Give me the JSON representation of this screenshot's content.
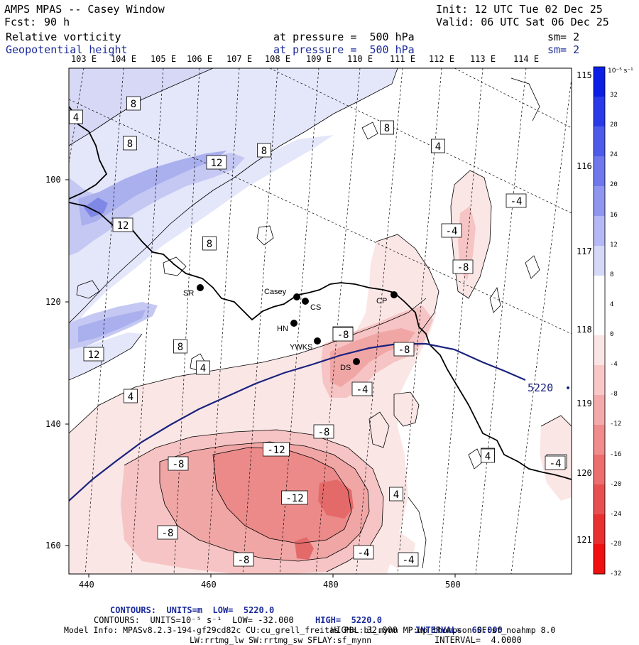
{
  "header": {
    "title": "AMPS MPAS -- Casey Window",
    "init": "Init: 12 UTC Tue 02 Dec 25",
    "fcst_label": "Fcst:",
    "fcst_value": "90 h",
    "valid": "Valid: 06 UTC Sat 06 Dec 25",
    "field1": "Relative vorticity",
    "field1_level": "at pressure =  500 hPa",
    "field1_sm": "sm= 2",
    "field2": "Geopotential height",
    "field2_level": "at pressure =  500 hPa",
    "field2_sm": "sm= 2"
  },
  "map": {
    "top_lon_labels": [
      "103 E",
      "104 E",
      "105 E",
      "106 E",
      "107 E",
      "108 E",
      "109 E",
      "110 E",
      "111 E",
      "112 E",
      "113 E",
      "114 E"
    ],
    "right_lon_labels": [
      "115 E",
      "116 E",
      "117 E",
      "118 E",
      "119 E",
      "120 E",
      "121 E"
    ],
    "x_ticks": [
      "440",
      "460",
      "480",
      "500"
    ],
    "y_ticks": [
      "100",
      "120",
      "140",
      "160"
    ],
    "stations": [
      {
        "name": "SR"
      },
      {
        "name": "Casey"
      },
      {
        "name": "CS"
      },
      {
        "name": "HN"
      },
      {
        "name": "YWKS"
      },
      {
        "name": "DS"
      },
      {
        "name": "CP"
      }
    ],
    "contour_labels": [
      "4",
      "8",
      "8",
      "12",
      "8",
      "8",
      "4",
      "-4",
      "12",
      "-4",
      "8",
      "-8",
      "12",
      "8",
      "-4",
      "-8",
      "4",
      "4",
      "-4",
      "-8",
      "-8",
      "-12",
      "-8",
      "-12",
      "-8",
      "4",
      "4",
      "-4",
      "-8",
      "-4",
      "-4",
      "-4",
      "4"
    ],
    "height_contour_label": "5220",
    "height_contour_color": "#1a237e",
    "coastline_color": "#000000"
  },
  "colorbar": {
    "unit": "10⁻⁵ s⁻¹",
    "labels": [
      "32",
      "28",
      "24",
      "20",
      "16",
      "12",
      "8",
      "4",
      "0",
      "-4",
      "-8",
      "-12",
      "-16",
      "-20",
      "-24",
      "-28",
      "-32"
    ],
    "colors": [
      "#0a1ee6",
      "#2a3ae8",
      "#4d5aea",
      "#6e78ec",
      "#9096f0",
      "#b4b8f4",
      "#d6d8f8",
      "#ffffff",
      "#ffffff",
      "#fbe4e4",
      "#f8c8c8",
      "#f4aaaa",
      "#f08c8c",
      "#ec6e6e",
      "#e85050",
      "#e83030",
      "#f01010"
    ]
  },
  "footer": {
    "line1_a": "CONTOURS:  UNITS=m  LOW=  5220.0",
    "line1_b": "HIGH=  5220.0",
    "line1_c": "INTERVAL=  60.000",
    "line2_a": "CONTOURS:  UNITS=10⁻⁵ s⁻¹  LOW= -32.000",
    "line2_b": "HIGH=  32.000",
    "line2_c": "INTERVAL=  4.0000",
    "line3": "Model Info: MPASv8.2.3-194-gf29cd82c CU:cu_grell_freitas PBL:bl_mynn MP:mp_thompson SF:sf_noahmp 8.0",
    "line4": "LW:rrtmg_lw SW:rrtmg_sw SFLAY:sf_mynn"
  }
}
